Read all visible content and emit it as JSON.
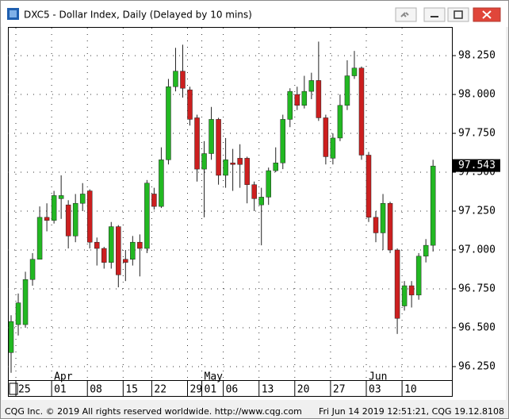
{
  "window": {
    "title": "DXC5 - Dollar Index, Daily (Delayed by 10 mins)"
  },
  "footer": {
    "left": "CQG Inc. © 2019 All rights reserved worldwide. http://www.cqg.com",
    "right": "Fri Jun 14 2019 12:51:21, CQG 19.12.8108"
  },
  "chart_data": {
    "type": "candlestick",
    "up_color": "#22b822",
    "down_color": "#cc1f1f",
    "grid": true,
    "categories": [
      null,
      "25",
      null,
      null,
      null,
      null,
      "01",
      null,
      null,
      null,
      null,
      "08",
      null,
      null,
      null,
      null,
      "15",
      null,
      null,
      null,
      "22",
      null,
      null,
      null,
      null,
      "29",
      null,
      "01",
      null,
      null,
      "06",
      null,
      null,
      null,
      null,
      "13",
      null,
      null,
      null,
      null,
      "20",
      null,
      null,
      null,
      null,
      "27",
      null,
      null,
      null,
      null,
      "03",
      null,
      null,
      null,
      null,
      "10",
      null,
      null,
      null,
      null
    ],
    "month_categories": [
      null,
      null,
      null,
      null,
      null,
      null,
      "Apr",
      null,
      null,
      null,
      null,
      null,
      null,
      null,
      null,
      null,
      null,
      null,
      null,
      null,
      null,
      null,
      null,
      null,
      null,
      null,
      null,
      "May",
      null,
      null,
      null,
      null,
      null,
      null,
      null,
      null,
      null,
      null,
      null,
      null,
      null,
      null,
      null,
      null,
      null,
      null,
      null,
      null,
      null,
      null,
      "Jun",
      null,
      null,
      null,
      null,
      null,
      null,
      null,
      null,
      null
    ],
    "open": [
      96.34,
      96.52,
      96.52,
      96.81,
      96.94,
      97.21,
      97.19,
      97.33,
      97.29,
      97.09,
      97.3,
      97.38,
      97.05,
      97.01,
      96.92,
      97.15,
      96.94,
      96.94,
      97.05,
      97.01,
      97.36,
      97.28,
      97.58,
      98.05,
      98.15,
      98.03,
      97.85,
      97.52,
      97.62,
      97.84,
      97.48,
      97.56,
      97.59,
      97.59,
      97.42,
      97.29,
      97.34,
      97.51,
      97.56,
      97.84,
      98.0,
      97.93,
      98.02,
      98.09,
      97.85,
      97.59,
      97.72,
      97.93,
      98.12,
      98.17,
      97.61,
      97.21,
      97.11,
      97.3,
      97.0,
      96.64,
      96.77,
      96.71,
      96.96,
      97.03
    ],
    "high": [
      96.58,
      96.72,
      96.86,
      96.98,
      97.28,
      97.3,
      97.38,
      97.48,
      97.32,
      97.36,
      97.43,
      97.39,
      97.08,
      97.02,
      97.18,
      97.16,
      97.0,
      97.09,
      97.1,
      97.45,
      97.4,
      97.66,
      98.1,
      98.3,
      98.32,
      98.05,
      97.87,
      97.7,
      97.92,
      97.85,
      97.72,
      97.65,
      97.68,
      97.6,
      97.44,
      97.4,
      97.53,
      97.66,
      97.87,
      98.04,
      98.05,
      98.12,
      98.14,
      98.34,
      97.87,
      97.75,
      98.0,
      98.22,
      98.28,
      98.18,
      97.63,
      97.25,
      97.36,
      97.31,
      97.01,
      96.8,
      96.8,
      96.98,
      97.07,
      97.58
    ],
    "low": [
      96.21,
      96.45,
      96.5,
      96.77,
      96.94,
      97.12,
      97.17,
      97.2,
      97.01,
      97.05,
      97.25,
      97.01,
      96.9,
      96.88,
      96.88,
      96.76,
      96.8,
      96.9,
      96.83,
      96.98,
      97.26,
      97.27,
      97.55,
      98.02,
      97.98,
      97.8,
      97.44,
      97.21,
      97.58,
      97.42,
      97.4,
      97.38,
      97.4,
      97.3,
      97.25,
      97.03,
      97.29,
      97.5,
      97.52,
      97.79,
      97.9,
      97.91,
      97.97,
      97.83,
      97.55,
      97.55,
      97.7,
      97.9,
      98.1,
      97.58,
      97.18,
      97.05,
      97.0,
      96.98,
      96.46,
      96.61,
      96.63,
      96.68,
      96.92,
      96.99
    ],
    "close": [
      96.54,
      96.66,
      96.81,
      96.94,
      97.21,
      97.19,
      97.35,
      97.35,
      97.09,
      97.3,
      97.36,
      97.05,
      97.01,
      96.92,
      97.15,
      96.84,
      96.92,
      97.05,
      97.01,
      97.43,
      97.28,
      97.58,
      98.05,
      98.15,
      98.04,
      97.84,
      97.52,
      97.62,
      97.84,
      97.48,
      97.58,
      97.55,
      97.55,
      97.42,
      97.33,
      97.34,
      97.51,
      97.56,
      97.84,
      98.02,
      97.93,
      98.02,
      98.09,
      97.85,
      97.6,
      97.72,
      97.93,
      98.12,
      98.17,
      97.61,
      97.21,
      97.11,
      97.3,
      97.0,
      96.56,
      96.77,
      96.71,
      96.96,
      97.03,
      97.54
    ],
    "ylim": [
      96.163,
      98.429
    ],
    "yticks": [
      {
        "value": 96.25,
        "label": "96.250"
      },
      {
        "value": 96.5,
        "label": "96.500"
      },
      {
        "value": 96.75,
        "label": "96.750"
      },
      {
        "value": 97,
        "label": "97.000"
      },
      {
        "value": 97.25,
        "label": "97.250"
      },
      {
        "value": 97.5,
        "label": "97.500"
      },
      {
        "value": 97.75,
        "label": "97.750"
      },
      {
        "value": 98,
        "label": "98.000"
      },
      {
        "value": 98.25,
        "label": "98.250"
      }
    ],
    "last_price": {
      "value": 97.543,
      "label": "97.543"
    }
  }
}
